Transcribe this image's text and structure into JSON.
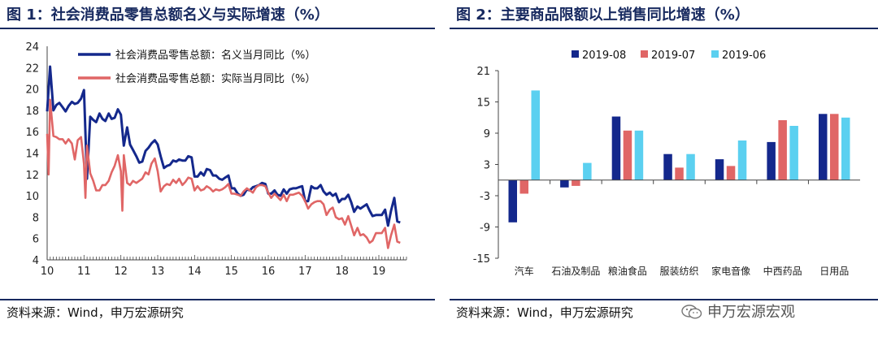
{
  "left_panel": {
    "title": "图 1：社会消费品零售总额名义与实际增速（%）",
    "source": "资料来源：Wind，申万宏源研究"
  },
  "right_panel": {
    "title": "图 2：主要商品限额以上销售同比增速（%）",
    "source": "资料来源：Wind，申万宏源研究"
  },
  "watermark": {
    "text": "申万宏源宏观",
    "icon": "wechat-icon"
  },
  "colors": {
    "navy": "#17295f",
    "red": "#e06666",
    "lightblue": "#5bd0f0",
    "darkblue": "#14288c"
  },
  "chart_data": [
    {
      "type": "line",
      "ylim": [
        4,
        24
      ],
      "yticks": [
        4,
        6,
        8,
        10,
        12,
        14,
        16,
        18,
        20,
        22,
        24
      ],
      "xticks": [
        "10",
        "11",
        "12",
        "13",
        "14",
        "15",
        "16",
        "17",
        "18",
        "19"
      ],
      "xlim": [
        2010.0,
        2019.75
      ],
      "series": [
        {
          "name": "社会消费品零售总额：名义当月同比（%）",
          "color": "#14288c",
          "points": [
            [
              2010.0,
              17.9
            ],
            [
              2010.08,
              22.1
            ],
            [
              2010.17,
              18.0
            ],
            [
              2010.25,
              18.5
            ],
            [
              2010.33,
              18.7
            ],
            [
              2010.42,
              18.3
            ],
            [
              2010.5,
              17.9
            ],
            [
              2010.58,
              18.4
            ],
            [
              2010.67,
              18.8
            ],
            [
              2010.75,
              18.6
            ],
            [
              2010.83,
              18.7
            ],
            [
              2010.92,
              19.1
            ],
            [
              2011.0,
              19.9
            ],
            [
              2011.08,
              11.6
            ],
            [
              2011.17,
              17.4
            ],
            [
              2011.25,
              17.1
            ],
            [
              2011.33,
              16.9
            ],
            [
              2011.42,
              17.7
            ],
            [
              2011.5,
              17.2
            ],
            [
              2011.58,
              17.0
            ],
            [
              2011.67,
              17.7
            ],
            [
              2011.75,
              17.2
            ],
            [
              2011.83,
              17.3
            ],
            [
              2011.92,
              18.1
            ],
            [
              2012.0,
              17.6
            ],
            [
              2012.08,
              14.7
            ],
            [
              2012.17,
              16.4
            ],
            [
              2012.25,
              14.8
            ],
            [
              2012.33,
              14.3
            ],
            [
              2012.42,
              13.7
            ],
            [
              2012.5,
              13.1
            ],
            [
              2012.58,
              13.2
            ],
            [
              2012.67,
              14.2
            ],
            [
              2012.75,
              14.5
            ],
            [
              2012.83,
              14.9
            ],
            [
              2012.92,
              15.2
            ],
            [
              2013.0,
              14.8
            ],
            [
              2013.08,
              13.7
            ],
            [
              2013.17,
              12.6
            ],
            [
              2013.25,
              12.8
            ],
            [
              2013.33,
              12.9
            ],
            [
              2013.42,
              13.3
            ],
            [
              2013.5,
              13.2
            ],
            [
              2013.58,
              13.4
            ],
            [
              2013.67,
              13.3
            ],
            [
              2013.75,
              13.3
            ],
            [
              2013.83,
              13.7
            ],
            [
              2013.92,
              13.6
            ],
            [
              2014.0,
              11.8
            ],
            [
              2014.08,
              11.8
            ],
            [
              2014.17,
              12.2
            ],
            [
              2014.25,
              11.9
            ],
            [
              2014.33,
              12.5
            ],
            [
              2014.42,
              12.4
            ],
            [
              2014.5,
              11.9
            ],
            [
              2014.58,
              11.9
            ],
            [
              2014.67,
              11.6
            ],
            [
              2014.75,
              11.5
            ],
            [
              2014.83,
              11.7
            ],
            [
              2014.92,
              11.9
            ],
            [
              2015.0,
              10.7
            ],
            [
              2015.08,
              10.7
            ],
            [
              2015.17,
              10.2
            ],
            [
              2015.25,
              10.0
            ],
            [
              2015.33,
              10.1
            ],
            [
              2015.42,
              10.6
            ],
            [
              2015.5,
              10.5
            ],
            [
              2015.58,
              10.8
            ],
            [
              2015.67,
              10.9
            ],
            [
              2015.75,
              11.0
            ],
            [
              2015.83,
              11.2
            ],
            [
              2015.92,
              11.1
            ],
            [
              2016.0,
              10.2
            ],
            [
              2016.08,
              10.2
            ],
            [
              2016.17,
              10.5
            ],
            [
              2016.25,
              10.1
            ],
            [
              2016.33,
              10.0
            ],
            [
              2016.42,
              10.6
            ],
            [
              2016.5,
              10.2
            ],
            [
              2016.58,
              10.6
            ],
            [
              2016.67,
              10.7
            ],
            [
              2016.75,
              10.7
            ],
            [
              2016.83,
              10.8
            ],
            [
              2016.92,
              10.9
            ],
            [
              2017.0,
              9.5
            ],
            [
              2017.08,
              9.5
            ],
            [
              2017.17,
              10.9
            ],
            [
              2017.25,
              10.7
            ],
            [
              2017.33,
              10.7
            ],
            [
              2017.42,
              11.0
            ],
            [
              2017.5,
              10.4
            ],
            [
              2017.58,
              10.1
            ],
            [
              2017.67,
              10.3
            ],
            [
              2017.75,
              10.0
            ],
            [
              2017.83,
              10.2
            ],
            [
              2017.92,
              9.4
            ],
            [
              2018.0,
              9.7
            ],
            [
              2018.08,
              9.7
            ],
            [
              2018.17,
              10.1
            ],
            [
              2018.25,
              9.4
            ],
            [
              2018.33,
              8.5
            ],
            [
              2018.42,
              9.0
            ],
            [
              2018.5,
              8.8
            ],
            [
              2018.58,
              9.0
            ],
            [
              2018.67,
              9.2
            ],
            [
              2018.75,
              8.6
            ],
            [
              2018.83,
              8.1
            ],
            [
              2018.92,
              8.2
            ],
            [
              2019.0,
              8.2
            ],
            [
              2019.08,
              8.2
            ],
            [
              2019.17,
              8.7
            ],
            [
              2019.25,
              7.2
            ],
            [
              2019.33,
              8.6
            ],
            [
              2019.42,
              9.8
            ],
            [
              2019.5,
              7.6
            ],
            [
              2019.58,
              7.5
            ]
          ]
        },
        {
          "name": "社会消费品零售总额：实际当月同比（%）",
          "color": "#e06666",
          "points": [
            [
              2010.0,
              15.8
            ],
            [
              2010.04,
              12.0
            ],
            [
              2010.08,
              19.0
            ],
            [
              2010.17,
              15.6
            ],
            [
              2010.25,
              15.5
            ],
            [
              2010.33,
              15.3
            ],
            [
              2010.42,
              15.3
            ],
            [
              2010.5,
              14.9
            ],
            [
              2010.58,
              15.3
            ],
            [
              2010.67,
              14.9
            ],
            [
              2010.75,
              13.4
            ],
            [
              2010.83,
              15.2
            ],
            [
              2010.92,
              15.5
            ],
            [
              2011.0,
              13.0
            ],
            [
              2011.04,
              9.8
            ],
            [
              2011.08,
              14.7
            ],
            [
              2011.17,
              12.1
            ],
            [
              2011.25,
              11.4
            ],
            [
              2011.33,
              10.5
            ],
            [
              2011.42,
              10.5
            ],
            [
              2011.5,
              11.0
            ],
            [
              2011.58,
              11.0
            ],
            [
              2011.67,
              11.4
            ],
            [
              2011.75,
              12.2
            ],
            [
              2011.83,
              12.8
            ],
            [
              2011.92,
              13.8
            ],
            [
              2012.0,
              12.3
            ],
            [
              2012.04,
              8.6
            ],
            [
              2012.08,
              13.8
            ],
            [
              2012.17,
              11.2
            ],
            [
              2012.25,
              11.0
            ],
            [
              2012.33,
              11.4
            ],
            [
              2012.42,
              11.2
            ],
            [
              2012.5,
              11.4
            ],
            [
              2012.58,
              11.6
            ],
            [
              2012.67,
              12.2
            ],
            [
              2012.75,
              12.0
            ],
            [
              2012.83,
              13.0
            ],
            [
              2012.92,
              13.5
            ],
            [
              2013.0,
              12.3
            ],
            [
              2013.08,
              10.4
            ],
            [
              2013.17,
              10.9
            ],
            [
              2013.25,
              11.1
            ],
            [
              2013.33,
              11.0
            ],
            [
              2013.42,
              11.5
            ],
            [
              2013.5,
              11.2
            ],
            [
              2013.58,
              11.6
            ],
            [
              2013.67,
              11.0
            ],
            [
              2013.75,
              11.3
            ],
            [
              2013.83,
              11.7
            ],
            [
              2013.92,
              11.6
            ],
            [
              2014.0,
              10.5
            ],
            [
              2014.08,
              10.9
            ],
            [
              2014.17,
              10.5
            ],
            [
              2014.25,
              10.6
            ],
            [
              2014.33,
              10.9
            ],
            [
              2014.42,
              10.7
            ],
            [
              2014.5,
              10.4
            ],
            [
              2014.58,
              10.6
            ],
            [
              2014.67,
              10.5
            ],
            [
              2014.75,
              10.6
            ],
            [
              2014.83,
              10.8
            ],
            [
              2014.92,
              11.1
            ],
            [
              2015.0,
              10.2
            ],
            [
              2015.08,
              10.2
            ],
            [
              2015.17,
              10.1
            ],
            [
              2015.25,
              10.0
            ],
            [
              2015.33,
              10.4
            ],
            [
              2015.42,
              10.7
            ],
            [
              2015.5,
              10.5
            ],
            [
              2015.58,
              10.3
            ],
            [
              2015.67,
              10.8
            ],
            [
              2015.75,
              11.0
            ],
            [
              2015.83,
              11.0
            ],
            [
              2015.92,
              10.9
            ],
            [
              2016.0,
              10.3
            ],
            [
              2016.08,
              9.8
            ],
            [
              2016.17,
              10.2
            ],
            [
              2016.25,
              9.9
            ],
            [
              2016.33,
              9.6
            ],
            [
              2016.42,
              10.1
            ],
            [
              2016.5,
              9.5
            ],
            [
              2016.58,
              10.1
            ],
            [
              2016.67,
              10.1
            ],
            [
              2016.75,
              10.2
            ],
            [
              2016.83,
              10.3
            ],
            [
              2016.92,
              10.0
            ],
            [
              2017.0,
              9.5
            ],
            [
              2017.08,
              8.8
            ],
            [
              2017.17,
              9.2
            ],
            [
              2017.25,
              9.4
            ],
            [
              2017.33,
              9.5
            ],
            [
              2017.42,
              9.5
            ],
            [
              2017.5,
              9.2
            ],
            [
              2017.58,
              8.2
            ],
            [
              2017.67,
              8.7
            ],
            [
              2017.75,
              8.9
            ],
            [
              2017.83,
              8.0
            ],
            [
              2017.92,
              7.8
            ],
            [
              2018.0,
              7.9
            ],
            [
              2018.08,
              7.3
            ],
            [
              2018.17,
              8.1
            ],
            [
              2018.25,
              7.2
            ],
            [
              2018.33,
              6.3
            ],
            [
              2018.42,
              7.0
            ],
            [
              2018.5,
              6.3
            ],
            [
              2018.58,
              6.4
            ],
            [
              2018.67,
              6.1
            ],
            [
              2018.75,
              5.6
            ],
            [
              2018.83,
              5.8
            ],
            [
              2018.92,
              6.5
            ],
            [
              2019.0,
              6.5
            ],
            [
              2019.08,
              6.5
            ],
            [
              2019.17,
              7.0
            ],
            [
              2019.25,
              5.1
            ],
            [
              2019.33,
              6.3
            ],
            [
              2019.42,
              7.3
            ],
            [
              2019.5,
              5.7
            ],
            [
              2019.58,
              5.6
            ]
          ]
        }
      ],
      "legend": "top-left",
      "grid": false
    },
    {
      "type": "bar",
      "ylim": [
        -15,
        21
      ],
      "yticks": [
        21,
        15,
        9,
        3,
        -3,
        -9,
        -15
      ],
      "categories": [
        "汽车",
        "石油及制品",
        "粮油食品",
        "服装纺织",
        "家电音像",
        "中西药品",
        "日用品"
      ],
      "series": [
        {
          "name": "2019-08",
          "color": "#14288c",
          "values": [
            -8.1,
            -1.4,
            12.2,
            5.0,
            4.0,
            7.3,
            12.7
          ]
        },
        {
          "name": "2019-07",
          "color": "#e06666",
          "values": [
            -2.6,
            -1.1,
            9.5,
            2.4,
            2.7,
            11.5,
            12.7
          ]
        },
        {
          "name": "2019-06",
          "color": "#5bd0f0",
          "values": [
            17.2,
            3.3,
            9.5,
            5.0,
            7.6,
            10.4,
            12.0
          ]
        }
      ],
      "legend": "top",
      "grid": false
    }
  ]
}
